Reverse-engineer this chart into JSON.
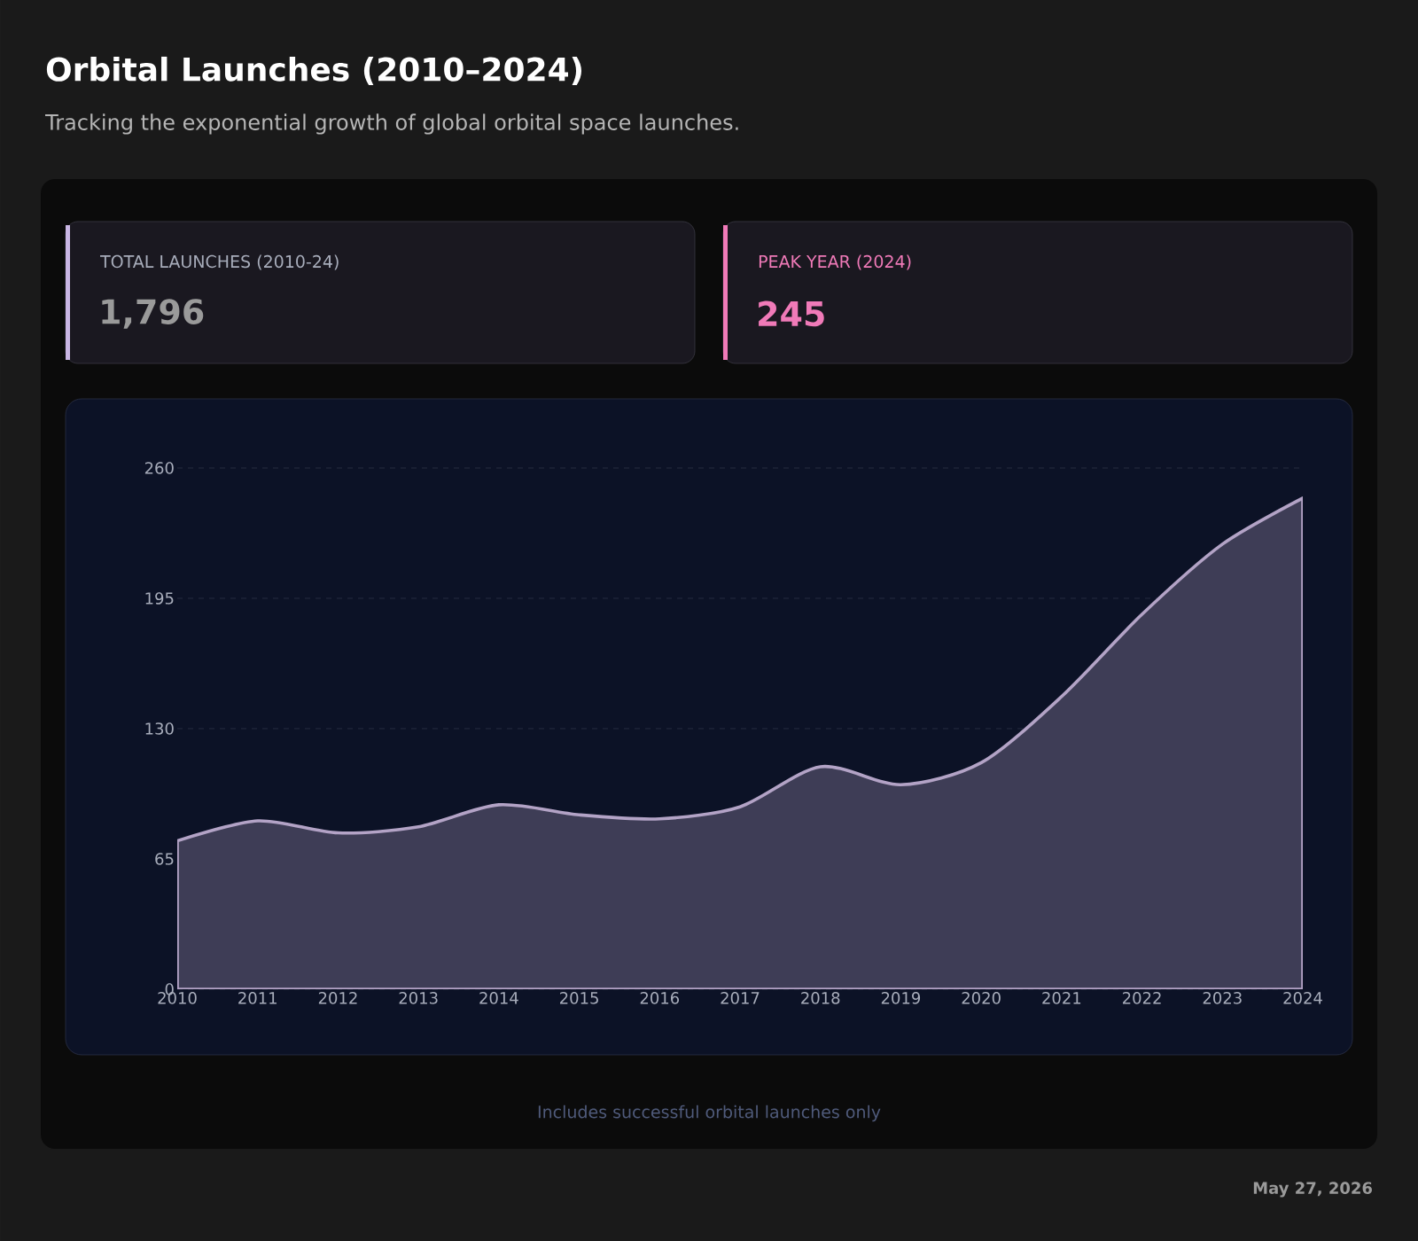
{
  "chart_data": {
    "type": "area",
    "title": "Orbital Launches (2010–2024)",
    "subtitle": "Tracking the exponential growth of global orbital space launches.",
    "categories": [
      "2010",
      "2011",
      "2012",
      "2013",
      "2014",
      "2015",
      "2016",
      "2017",
      "2018",
      "2019",
      "2020",
      "2021",
      "2022",
      "2023",
      "2024"
    ],
    "series": [
      {
        "color": "#b3a3c6",
        "values": [
          74,
          84,
          78,
          81,
          92,
          87,
          85,
          91,
          111,
          102,
          113,
          146,
          187,
          222,
          245
        ]
      }
    ],
    "ylim": [
      0,
      260
    ],
    "yticks": [
      0,
      65,
      130,
      195,
      260
    ],
    "grid": "y",
    "marker": "none",
    "annotations": [
      "TOTAL LAUNCHES (2010-24)",
      "1,796",
      "PEAK YEAR (2024)",
      "245",
      "Includes successful orbital launches only",
      "May 27, 2026"
    ]
  }
}
